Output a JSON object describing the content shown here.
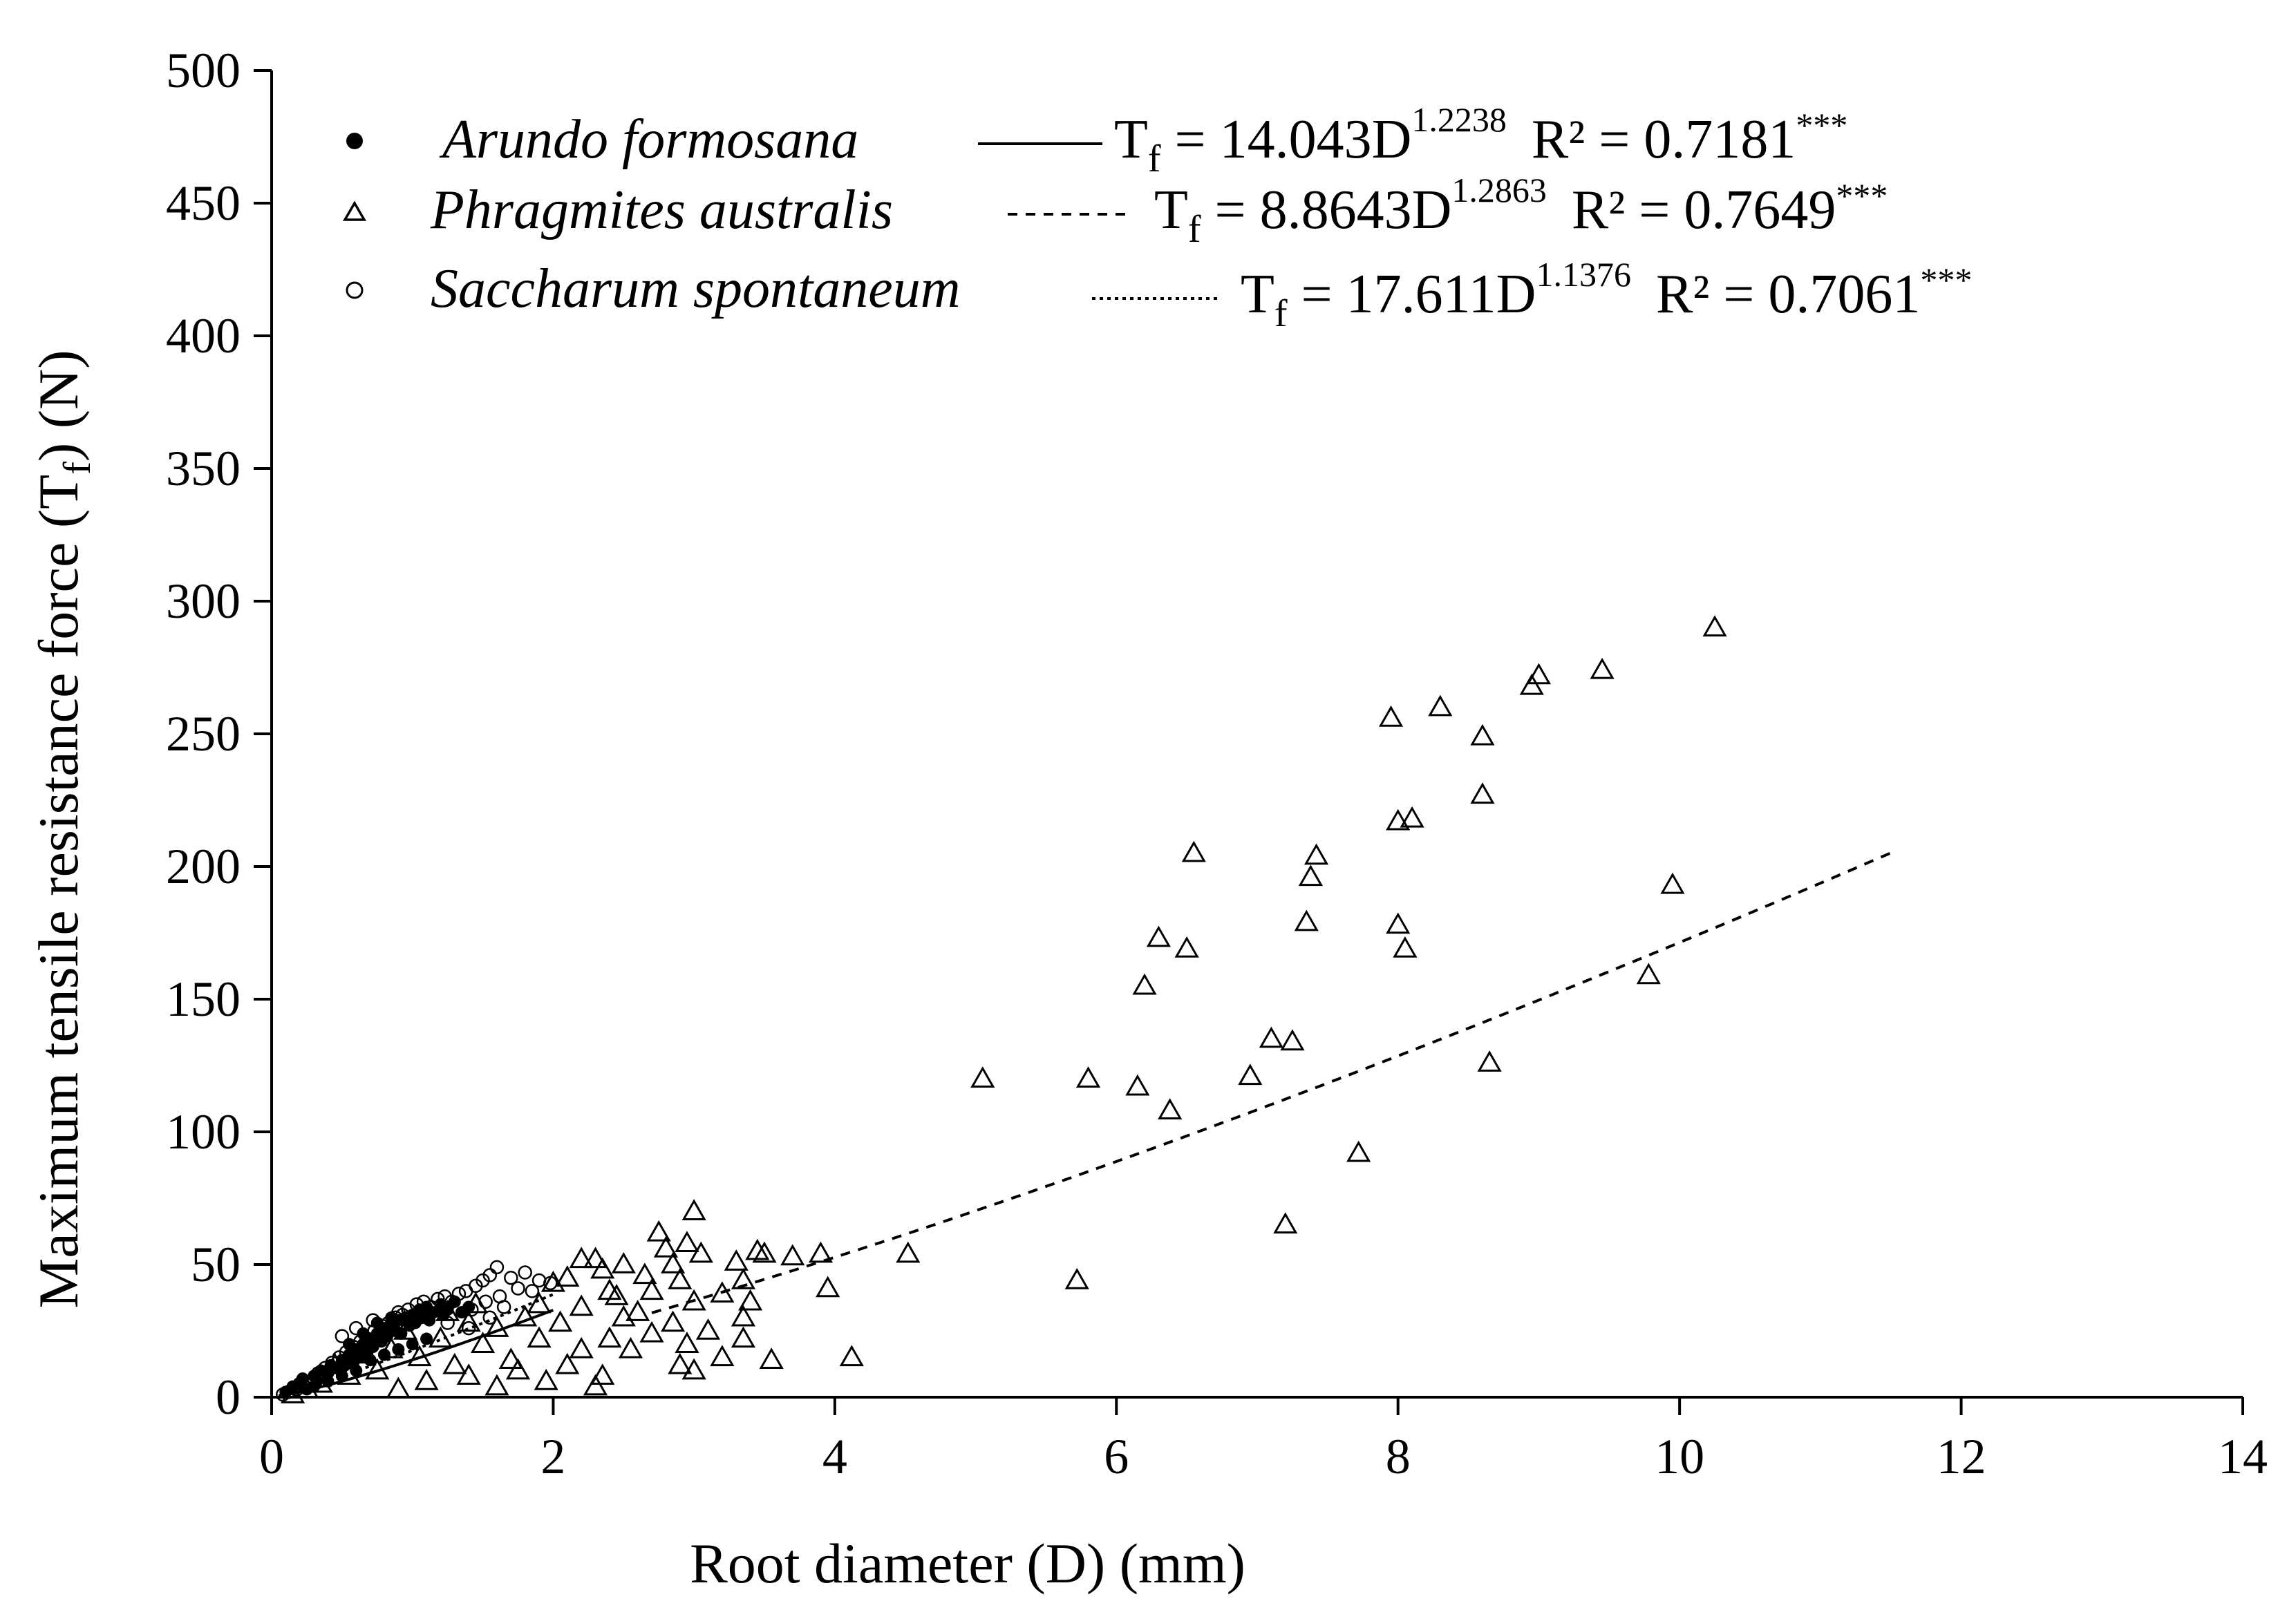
{
  "chart_data": {
    "type": "scatter",
    "xlabel": "Root diameter (D) (mm)",
    "ylabel_main": "Maximum tensile resistance force (T",
    "ylabel_sub": "f",
    "ylabel_close": ") (N)",
    "xlim": [
      0,
      14
    ],
    "ylim": [
      0,
      500
    ],
    "x_ticks": [
      "0",
      "2",
      "4",
      "6",
      "8",
      "10",
      "12",
      "14"
    ],
    "y_ticks": [
      "0",
      "50",
      "100",
      "150",
      "200",
      "250",
      "300",
      "350",
      "400",
      "450",
      "500"
    ],
    "legend": [
      {
        "id": "arundo",
        "name": "Arundo formosana",
        "marker": "filled-circle",
        "line": "solid",
        "eq_prefix": "T",
        "eq_sub": "f",
        "eq_body": " = 14.043D",
        "eq_exp": "1.2238",
        "r2_text": "R² = 0.7181",
        "signif": "***"
      },
      {
        "id": "phragmites",
        "name": "Phragmites australis",
        "marker": "open-triangle",
        "line": "dashed",
        "eq_prefix": "T",
        "eq_sub": "f",
        "eq_body": " = 8.8643D",
        "eq_exp": "1.2863",
        "r2_text": "R² = 0.7649",
        "signif": "***"
      },
      {
        "id": "saccharum",
        "name": "Saccharum spontaneum",
        "marker": "open-circle",
        "line": "dotted",
        "eq_prefix": "T",
        "eq_sub": "f",
        "eq_body": " = 17.611D",
        "eq_exp": "1.1376",
        "r2_text": "R² = 0.7061",
        "signif": "***"
      }
    ],
    "series": [
      {
        "name": "Phragmites australis",
        "marker": "open-triangle",
        "fit": {
          "a": 8.8643,
          "b": 1.2863,
          "x_range": [
            2.7,
            11.5
          ],
          "style": "dashed"
        },
        "points": [
          [
            10.25,
            290
          ],
          [
            9.45,
            274
          ],
          [
            9.0,
            272
          ],
          [
            8.95,
            268
          ],
          [
            8.3,
            260
          ],
          [
            7.95,
            256
          ],
          [
            8.6,
            249
          ],
          [
            8.6,
            227
          ],
          [
            8.0,
            217
          ],
          [
            8.1,
            218
          ],
          [
            6.55,
            205
          ],
          [
            7.42,
            204
          ],
          [
            7.38,
            196
          ],
          [
            9.95,
            193
          ],
          [
            7.35,
            179
          ],
          [
            8.0,
            178
          ],
          [
            6.3,
            173
          ],
          [
            6.5,
            169
          ],
          [
            8.05,
            169
          ],
          [
            9.78,
            159
          ],
          [
            6.2,
            155
          ],
          [
            7.1,
            135
          ],
          [
            7.25,
            134
          ],
          [
            8.65,
            126
          ],
          [
            6.95,
            121
          ],
          [
            5.05,
            120
          ],
          [
            5.8,
            120
          ],
          [
            6.15,
            117
          ],
          [
            6.38,
            108
          ],
          [
            7.72,
            92
          ],
          [
            7.2,
            65
          ],
          [
            3.0,
            70
          ],
          [
            2.75,
            62
          ],
          [
            2.95,
            58
          ],
          [
            3.45,
            55
          ],
          [
            3.5,
            54
          ],
          [
            3.7,
            53
          ],
          [
            3.9,
            54
          ],
          [
            4.52,
            54
          ],
          [
            3.05,
            54
          ],
          [
            2.85,
            50
          ],
          [
            3.3,
            51
          ],
          [
            2.2,
            52
          ],
          [
            2.3,
            52
          ],
          [
            2.5,
            50
          ],
          [
            2.65,
            46
          ],
          [
            2.9,
            44
          ],
          [
            3.35,
            44
          ],
          [
            3.95,
            41
          ],
          [
            5.72,
            44
          ],
          [
            2.0,
            43
          ],
          [
            2.1,
            45
          ],
          [
            2.4,
            40
          ],
          [
            2.45,
            38
          ],
          [
            2.7,
            40
          ],
          [
            3.2,
            39
          ],
          [
            3.0,
            36
          ],
          [
            3.4,
            36
          ],
          [
            1.9,
            35
          ],
          [
            2.2,
            34
          ],
          [
            2.6,
            32
          ],
          [
            3.35,
            30
          ],
          [
            2.85,
            28
          ],
          [
            3.1,
            25
          ],
          [
            3.35,
            22
          ],
          [
            2.4,
            22
          ],
          [
            2.05,
            28
          ],
          [
            1.8,
            30
          ],
          [
            1.6,
            26
          ],
          [
            2.2,
            18
          ],
          [
            2.55,
            18
          ],
          [
            3.2,
            15
          ],
          [
            2.9,
            12
          ],
          [
            3.0,
            10
          ],
          [
            4.12,
            15
          ],
          [
            3.55,
            14
          ],
          [
            2.35,
            8
          ],
          [
            2.3,
            4
          ],
          [
            1.95,
            6
          ],
          [
            1.75,
            10
          ],
          [
            1.5,
            20
          ],
          [
            1.4,
            28
          ],
          [
            1.3,
            12
          ],
          [
            1.2,
            22
          ],
          [
            1.05,
            15
          ],
          [
            0.95,
            25
          ],
          [
            0.85,
            18
          ],
          [
            0.75,
            10
          ],
          [
            0.65,
            16
          ],
          [
            0.55,
            8
          ],
          [
            0.45,
            12
          ],
          [
            0.35,
            5
          ],
          [
            0.25,
            3
          ],
          [
            0.15,
            1
          ],
          [
            1.6,
            4
          ],
          [
            1.1,
            6
          ],
          [
            0.9,
            3
          ],
          [
            1.4,
            8
          ],
          [
            1.7,
            14
          ],
          [
            1.9,
            22
          ],
          [
            2.1,
            12
          ],
          [
            2.7,
            24
          ],
          [
            2.5,
            30
          ],
          [
            2.95,
            20
          ],
          [
            1.45,
            35
          ],
          [
            1.25,
            32
          ],
          [
            2.8,
            56
          ],
          [
            2.35,
            48
          ]
        ]
      },
      {
        "name": "Arundo formosana",
        "marker": "filled-circle",
        "fit": {
          "a": 14.043,
          "b": 1.2238,
          "x_range": [
            0.05,
            2.0
          ],
          "style": "solid"
        },
        "points": [
          [
            0.1,
            2
          ],
          [
            0.15,
            4
          ],
          [
            0.2,
            5
          ],
          [
            0.22,
            7
          ],
          [
            0.25,
            3
          ],
          [
            0.3,
            8
          ],
          [
            0.32,
            6
          ],
          [
            0.35,
            10
          ],
          [
            0.4,
            9
          ],
          [
            0.42,
            12
          ],
          [
            0.45,
            11
          ],
          [
            0.5,
            14
          ],
          [
            0.52,
            12
          ],
          [
            0.55,
            16
          ],
          [
            0.58,
            13
          ],
          [
            0.6,
            18
          ],
          [
            0.62,
            15
          ],
          [
            0.65,
            20
          ],
          [
            0.68,
            17
          ],
          [
            0.7,
            22
          ],
          [
            0.72,
            19
          ],
          [
            0.75,
            24
          ],
          [
            0.78,
            21
          ],
          [
            0.8,
            26
          ],
          [
            0.82,
            23
          ],
          [
            0.85,
            27
          ],
          [
            0.88,
            25
          ],
          [
            0.9,
            29
          ],
          [
            0.92,
            24
          ],
          [
            0.95,
            30
          ],
          [
            0.98,
            27
          ],
          [
            1.0,
            31
          ],
          [
            1.02,
            28
          ],
          [
            1.05,
            33
          ],
          [
            1.08,
            30
          ],
          [
            1.1,
            34
          ],
          [
            1.12,
            29
          ],
          [
            1.15,
            32
          ],
          [
            1.2,
            35
          ],
          [
            1.22,
            31
          ],
          [
            1.25,
            33
          ],
          [
            1.3,
            36
          ],
          [
            1.35,
            32
          ],
          [
            1.4,
            34
          ],
          [
            0.3,
            4
          ],
          [
            0.4,
            6
          ],
          [
            0.5,
            8
          ],
          [
            0.6,
            10
          ],
          [
            0.7,
            14
          ],
          [
            0.8,
            16
          ],
          [
            0.9,
            18
          ],
          [
            1.0,
            20
          ],
          [
            1.1,
            22
          ],
          [
            0.55,
            20
          ],
          [
            0.65,
            24
          ],
          [
            0.75,
            28
          ],
          [
            0.85,
            30
          ]
        ]
      },
      {
        "name": "Saccharum spontaneum",
        "marker": "open-circle",
        "fit": {
          "a": 17.611,
          "b": 1.1376,
          "x_range": [
            0.05,
            2.0
          ],
          "style": "dotted"
        },
        "points": [
          [
            0.08,
            1
          ],
          [
            0.12,
            2
          ],
          [
            0.18,
            3
          ],
          [
            0.2,
            5
          ],
          [
            0.28,
            6
          ],
          [
            0.33,
            9
          ],
          [
            0.38,
            11
          ],
          [
            0.43,
            13
          ],
          [
            0.48,
            15
          ],
          [
            0.53,
            17
          ],
          [
            0.58,
            19
          ],
          [
            0.63,
            21
          ],
          [
            0.68,
            22
          ],
          [
            0.73,
            25
          ],
          [
            0.78,
            27
          ],
          [
            0.83,
            28
          ],
          [
            0.88,
            30
          ],
          [
            0.93,
            31
          ],
          [
            0.97,
            33
          ],
          [
            1.03,
            35
          ],
          [
            1.08,
            36
          ],
          [
            1.13,
            34
          ],
          [
            1.18,
            37
          ],
          [
            1.23,
            38
          ],
          [
            1.28,
            36
          ],
          [
            1.33,
            39
          ],
          [
            1.38,
            40
          ],
          [
            1.45,
            42
          ],
          [
            1.5,
            44
          ],
          [
            1.55,
            46
          ],
          [
            1.6,
            49
          ],
          [
            1.7,
            45
          ],
          [
            1.8,
            47
          ],
          [
            1.9,
            44
          ],
          [
            1.98,
            43
          ],
          [
            1.75,
            41
          ],
          [
            1.85,
            40
          ],
          [
            1.62,
            38
          ],
          [
            1.52,
            36
          ],
          [
            1.42,
            33
          ],
          [
            0.5,
            23
          ],
          [
            0.6,
            26
          ],
          [
            0.72,
            29
          ],
          [
            0.9,
            32
          ],
          [
            1.05,
            30
          ],
          [
            1.25,
            28
          ],
          [
            1.4,
            26
          ],
          [
            1.55,
            30
          ],
          [
            1.65,
            34
          ]
        ]
      }
    ]
  },
  "colors": {
    "ink": "#000000",
    "background": "#ffffff"
  }
}
